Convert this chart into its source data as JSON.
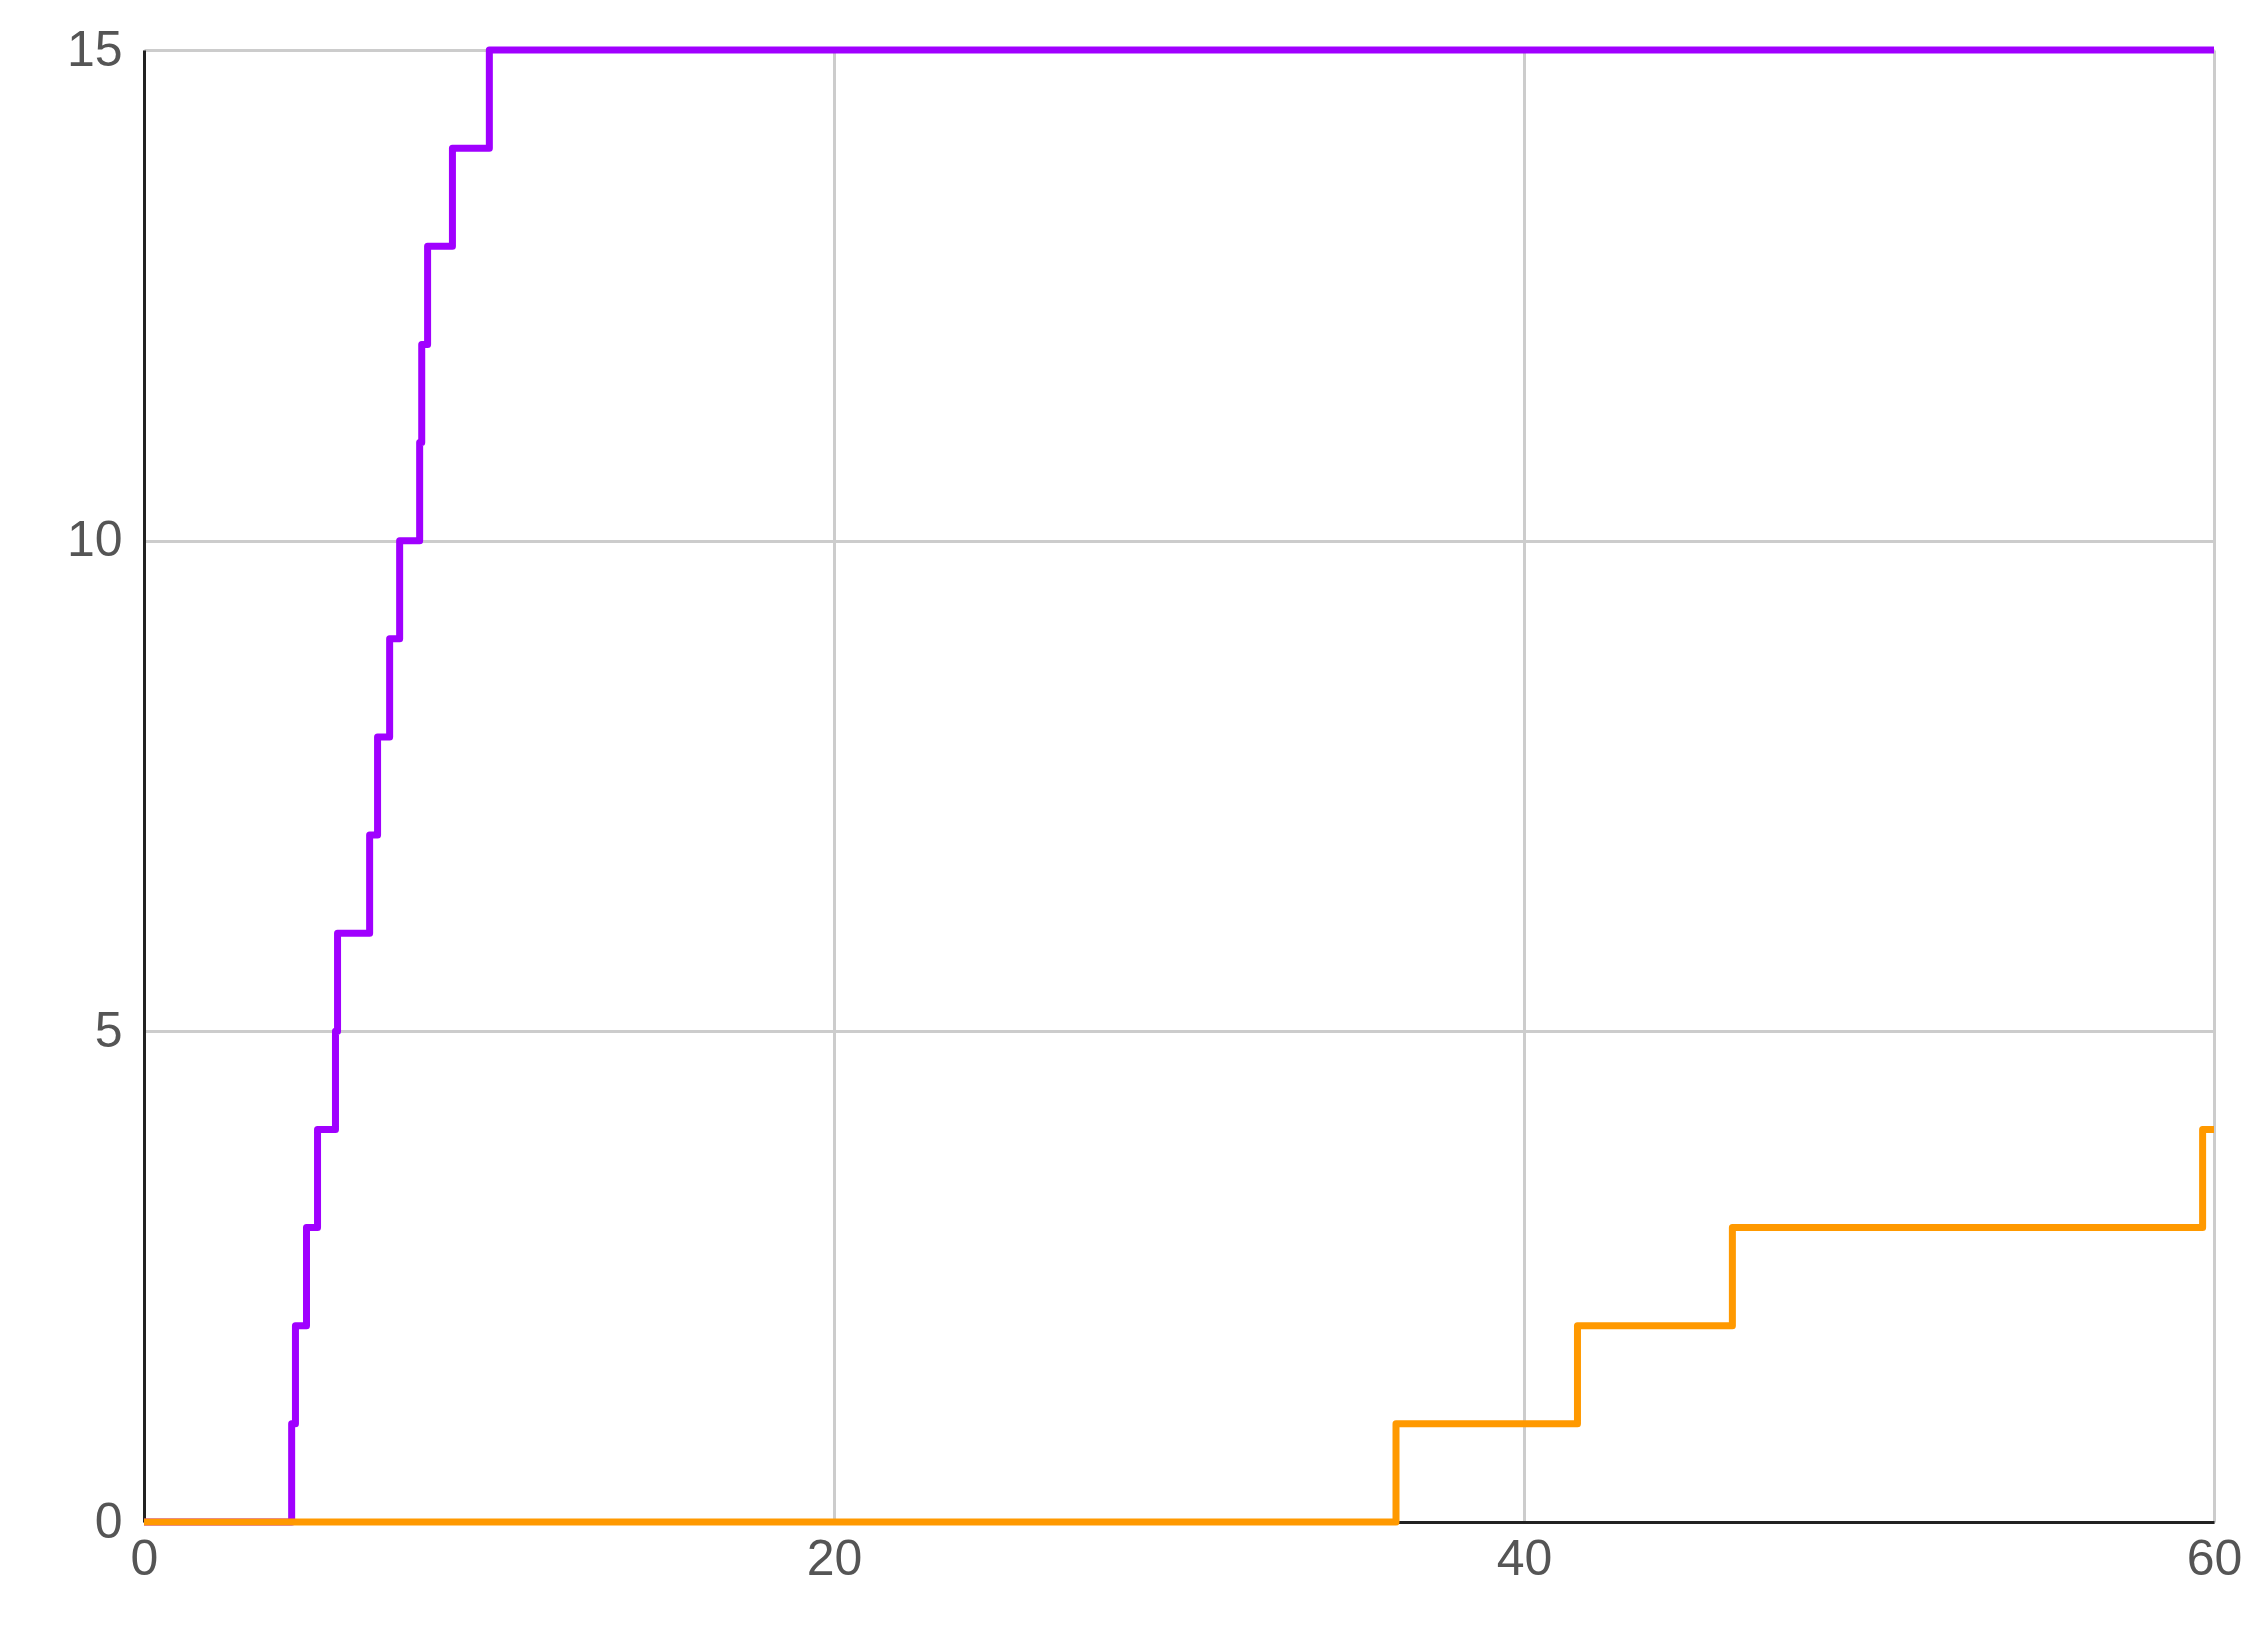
{
  "chart_data": {
    "type": "step",
    "series": [
      {
        "color": "#a000ff",
        "x": [
          0,
          4.28,
          4.39,
          4.71,
          5.03,
          5.55,
          5.61,
          6.54,
          6.77,
          7.12,
          7.41,
          7.99,
          8.05,
          8.22,
          8.94,
          10.01,
          60
        ],
        "values": [
          0,
          1,
          2,
          3,
          4,
          5,
          6,
          7,
          8,
          9,
          10,
          11,
          12,
          13,
          14,
          15,
          15
        ]
      },
      {
        "color": "#ff9900",
        "x": [
          0,
          36.29,
          41.55,
          46.04,
          59.67,
          60
        ],
        "values": [
          0,
          1,
          2,
          3,
          4,
          4
        ]
      }
    ],
    "xlim": [
      0,
      60
    ],
    "xticks": [
      0,
      20,
      40,
      60
    ],
    "ylim": [
      0,
      15
    ],
    "yticks": [
      0,
      5,
      10,
      15
    ],
    "grid": true
  }
}
